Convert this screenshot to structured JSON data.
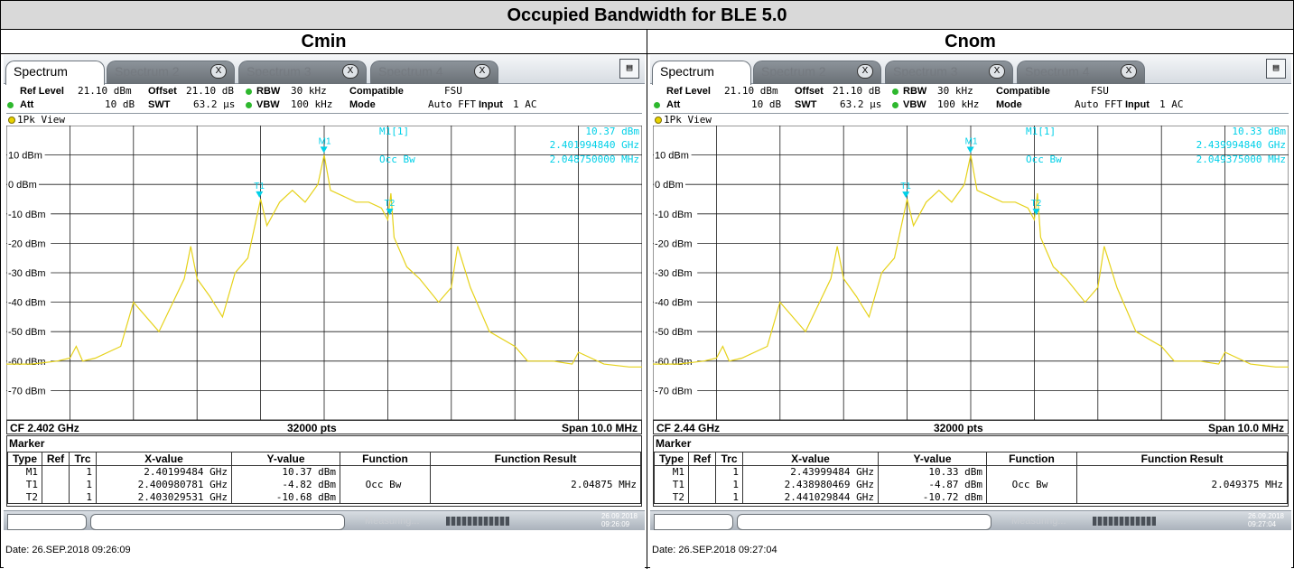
{
  "title": "Occupied Bandwidth for BLE 5.0",
  "colors": {
    "trace": "#e6d21a",
    "marker": "#00d0e8",
    "grid": "#1a1a1a"
  },
  "panels": [
    {
      "column_title": "Cmin",
      "tabs": [
        "Spectrum",
        "Spectrum 2",
        "Spectrum 3",
        "Spectrum 4"
      ],
      "tab_close": "X",
      "settings": {
        "ref_level_label": "Ref Level",
        "ref_level": "21.10 dBm",
        "offset_label": "Offset",
        "offset": "21.10 dB",
        "rbw_label": "RBW",
        "rbw": "30 kHz",
        "compatible_label": "Compatible",
        "compatible": "FSU",
        "att_label": "Att",
        "att": "10 dB",
        "swt_label": "SWT",
        "swt": "63.2 μs",
        "vbw_label": "VBW",
        "vbw": "100 kHz",
        "mode_label": "Mode",
        "mode": "Auto FFT",
        "input_label": "Input",
        "input": "1 AC"
      },
      "view_label": "1Pk View",
      "marker_readout": {
        "name": "M1[1]",
        "value": "10.37 dBm",
        "freq": "2.401994840 GHz",
        "occ_label": "Occ Bw",
        "occ": "2.048750000 MHz"
      },
      "footer": {
        "cf": "CF 2.402 GHz",
        "pts": "32000 pts",
        "span": "Span 10.0 MHz"
      },
      "marker_title": "Marker",
      "table_headers": [
        "Type",
        "Ref",
        "Trc",
        "X-value",
        "Y-value",
        "Function",
        "Function Result"
      ],
      "table_rows": [
        [
          "M1",
          "",
          "1",
          "2.40199484 GHz",
          "10.37 dBm",
          "",
          ""
        ],
        [
          "T1",
          "",
          "1",
          "2.400980781 GHz",
          "-4.82 dBm",
          "Occ Bw",
          "2.04875 MHz"
        ],
        [
          "T2",
          "",
          "1",
          "2.403029531 GHz",
          "-10.68 dBm",
          "",
          ""
        ]
      ],
      "status_measuring": "Measuring...",
      "status_date": "26.09.2018",
      "status_time": "09:26:09",
      "date_line": "Date: 26.SEP.2018  09:26:09"
    },
    {
      "column_title": "Cnom",
      "tabs": [
        "Spectrum",
        "Spectrum 2",
        "Spectrum 3",
        "Spectrum 4"
      ],
      "tab_close": "X",
      "settings": {
        "ref_level_label": "Ref Level",
        "ref_level": "21.10 dBm",
        "offset_label": "Offset",
        "offset": "21.10 dB",
        "rbw_label": "RBW",
        "rbw": "30 kHz",
        "compatible_label": "Compatible",
        "compatible": "FSU",
        "att_label": "Att",
        "att": "10 dB",
        "swt_label": "SWT",
        "swt": "63.2 μs",
        "vbw_label": "VBW",
        "vbw": "100 kHz",
        "mode_label": "Mode",
        "mode": "Auto FFT",
        "input_label": "Input",
        "input": "1 AC"
      },
      "view_label": "1Pk View",
      "marker_readout": {
        "name": "M1[1]",
        "value": "10.33 dBm",
        "freq": "2.439994840 GHz",
        "occ_label": "Occ Bw",
        "occ": "2.049375000 MHz"
      },
      "footer": {
        "cf": "CF 2.44 GHz",
        "pts": "32000 pts",
        "span": "Span 10.0 MHz"
      },
      "marker_title": "Marker",
      "table_headers": [
        "Type",
        "Ref",
        "Trc",
        "X-value",
        "Y-value",
        "Function",
        "Function Result"
      ],
      "table_rows": [
        [
          "M1",
          "",
          "1",
          "2.43999484 GHz",
          "10.33 dBm",
          "",
          ""
        ],
        [
          "T1",
          "",
          "1",
          "2.438980469 GHz",
          "-4.87 dBm",
          "Occ Bw",
          "2.049375 MHz"
        ],
        [
          "T2",
          "",
          "1",
          "2.441029844 GHz",
          "-10.72 dBm",
          "",
          ""
        ]
      ],
      "status_measuring": "Measuring...",
      "status_date": "26.09.2018",
      "status_time": "09:27:04",
      "date_line": "Date: 26.SEP.2018  09:27:04"
    }
  ],
  "chart_data": [
    {
      "type": "line",
      "title": "Cmin",
      "xlabel": "",
      "ylabel": "",
      "ylim": [
        -80,
        20
      ],
      "xlim_mhz": [
        -5,
        5
      ],
      "ytick_labels": [
        "10 dBm",
        "0 dBm",
        "-10 dBm",
        "-20 dBm",
        "-30 dBm",
        "-40 dBm",
        "-50 dBm",
        "-60 dBm",
        "-70 dBm"
      ],
      "grid": true,
      "series": [
        {
          "x_offset_mhz": [
            -5.0,
            -4.6,
            -4.2,
            -4.0,
            -3.9,
            -3.8,
            -3.6,
            -3.2,
            -3.0,
            -2.6,
            -2.2,
            -2.1,
            -2.0,
            -1.8,
            -1.6,
            -1.4,
            -1.2,
            -1.0,
            -0.9,
            -0.7,
            -0.5,
            -0.3,
            -0.1,
            0.0,
            0.1,
            0.3,
            0.5,
            0.7,
            0.9,
            1.0,
            1.05,
            1.1,
            1.3,
            1.5,
            1.8,
            2.0,
            2.1,
            2.3,
            2.6,
            3.0,
            3.2,
            3.6,
            3.9,
            4.0,
            4.4,
            4.8,
            5.0
          ],
          "y_dbm": [
            -61,
            -61,
            -60,
            -59,
            -55,
            -60,
            -59,
            -55,
            -40,
            -50,
            -32,
            -21,
            -32,
            -38,
            -45,
            -30,
            -25,
            -5,
            -14,
            -6,
            -2,
            -6,
            0,
            10,
            -2,
            -4,
            -6,
            -6,
            -8,
            -12,
            -3,
            -18,
            -28,
            -32,
            -40,
            -35,
            -21,
            -35,
            -50,
            -55,
            -60,
            -60,
            -61,
            -57,
            -61,
            -62,
            -62
          ]
        }
      ],
      "markers": [
        {
          "name": "M1",
          "x_offset_mhz": -0.005,
          "y_dbm": 10.37
        },
        {
          "name": "T1",
          "x_offset_mhz": -1.019,
          "y_dbm": -4.82
        },
        {
          "name": "T2",
          "x_offset_mhz": 1.03,
          "y_dbm": -10.68
        }
      ]
    },
    {
      "type": "line",
      "title": "Cnom",
      "xlabel": "",
      "ylabel": "",
      "ylim": [
        -80,
        20
      ],
      "xlim_mhz": [
        -5,
        5
      ],
      "ytick_labels": [
        "10 dBm",
        "0 dBm",
        "-10 dBm",
        "-20 dBm",
        "-30 dBm",
        "-40 dBm",
        "-50 dBm",
        "-60 dBm",
        "-70 dBm"
      ],
      "grid": true,
      "series": [
        {
          "x_offset_mhz": [
            -5.0,
            -4.6,
            -4.2,
            -4.0,
            -3.9,
            -3.8,
            -3.6,
            -3.2,
            -3.0,
            -2.6,
            -2.2,
            -2.1,
            -2.0,
            -1.8,
            -1.6,
            -1.4,
            -1.2,
            -1.0,
            -0.9,
            -0.7,
            -0.5,
            -0.3,
            -0.1,
            0.0,
            0.1,
            0.3,
            0.5,
            0.7,
            0.9,
            1.0,
            1.05,
            1.1,
            1.3,
            1.5,
            1.8,
            2.0,
            2.1,
            2.3,
            2.6,
            3.0,
            3.2,
            3.6,
            3.9,
            4.0,
            4.4,
            4.8,
            5.0
          ],
          "y_dbm": [
            -61,
            -61,
            -60,
            -59,
            -55,
            -60,
            -59,
            -55,
            -40,
            -50,
            -32,
            -21,
            -32,
            -38,
            -45,
            -30,
            -25,
            -5,
            -14,
            -6,
            -2,
            -6,
            0,
            10,
            -2,
            -4,
            -6,
            -6,
            -8,
            -12,
            -3,
            -18,
            -28,
            -32,
            -40,
            -35,
            -21,
            -35,
            -50,
            -55,
            -60,
            -60,
            -61,
            -57,
            -61,
            -62,
            -62
          ]
        }
      ],
      "markers": [
        {
          "name": "M1",
          "x_offset_mhz": -0.005,
          "y_dbm": 10.33
        },
        {
          "name": "T1",
          "x_offset_mhz": -1.02,
          "y_dbm": -4.87
        },
        {
          "name": "T2",
          "x_offset_mhz": 1.03,
          "y_dbm": -10.72
        }
      ]
    }
  ]
}
